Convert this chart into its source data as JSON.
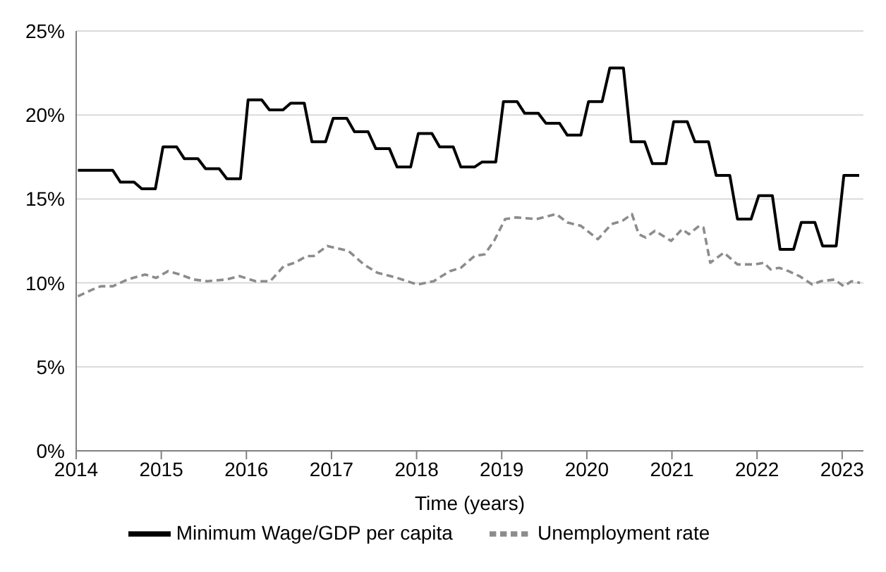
{
  "chart_data": {
    "type": "line",
    "xlabel": "Time (years)",
    "xlim": [
      2014,
      2023.25
    ],
    "xticks": [
      2014,
      2015,
      2016,
      2017,
      2018,
      2019,
      2020,
      2021,
      2022,
      2023
    ],
    "ylim": [
      0,
      25
    ],
    "yticks": [
      {
        "value": 0,
        "label": "0%"
      },
      {
        "value": 5,
        "label": "5%"
      },
      {
        "value": 10,
        "label": "10%"
      },
      {
        "value": 15,
        "label": "15%"
      },
      {
        "value": 20,
        "label": "20%"
      },
      {
        "value": 25,
        "label": "25%"
      }
    ],
    "grid": "y",
    "legend": "bottom",
    "marker": "none",
    "series": [
      {
        "name": "Unemployment rate",
        "color": "#8c8c8c",
        "line_style": "dashed",
        "x": [
          2014.02,
          2014.19,
          2014.29,
          2014.43,
          2014.6,
          2014.81,
          2014.94,
          2015.08,
          2015.22,
          2015.38,
          2015.54,
          2015.76,
          2015.92,
          2016.11,
          2016.28,
          2016.44,
          2016.57,
          2016.71,
          2016.79,
          2016.95,
          2017.2,
          2017.38,
          2017.54,
          2017.77,
          2018.01,
          2018.2,
          2018.39,
          2018.52,
          2018.68,
          2018.8,
          2018.91,
          2019.04,
          2019.17,
          2019.41,
          2019.64,
          2019.77,
          2019.93,
          2020.13,
          2020.29,
          2020.42,
          2020.53,
          2020.61,
          2020.69,
          2020.8,
          2020.99,
          2021.12,
          2021.2,
          2021.32,
          2021.37,
          2021.45,
          2021.61,
          2021.77,
          2021.97,
          2022.08,
          2022.16,
          2022.26,
          2022.37,
          2022.5,
          2022.65,
          2022.75,
          2022.91,
          2023.02,
          2023.11,
          2023.21
        ],
        "values": [
          9.2,
          9.6,
          9.8,
          9.8,
          10.2,
          10.5,
          10.3,
          10.7,
          10.5,
          10.2,
          10.1,
          10.2,
          10.4,
          10.1,
          10.1,
          11.0,
          11.2,
          11.6,
          11.6,
          12.2,
          11.9,
          11.1,
          10.6,
          10.3,
          9.9,
          10.1,
          10.7,
          10.9,
          11.6,
          11.7,
          12.5,
          13.8,
          13.9,
          13.8,
          14.1,
          13.6,
          13.4,
          12.6,
          13.5,
          13.7,
          14.1,
          12.9,
          12.7,
          13.1,
          12.5,
          13.2,
          12.9,
          13.4,
          13.3,
          11.2,
          11.8,
          11.1,
          11.1,
          11.2,
          10.8,
          10.9,
          10.7,
          10.4,
          9.9,
          10.1,
          10.2,
          9.8,
          10.1,
          10.0
        ]
      },
      {
        "name": "Minimum Wage/GDP per capita",
        "color": "#000000",
        "line_style": "solid",
        "x": [
          2014.02,
          2014.18,
          2014.27,
          2014.43,
          2014.52,
          2014.68,
          2014.77,
          2014.93,
          2015.02,
          2015.18,
          2015.27,
          2015.43,
          2015.52,
          2015.68,
          2015.77,
          2015.93,
          2016.02,
          2016.18,
          2016.27,
          2016.43,
          2016.52,
          2016.68,
          2016.77,
          2016.93,
          2017.02,
          2017.18,
          2017.27,
          2017.43,
          2017.52,
          2017.68,
          2017.77,
          2017.93,
          2018.02,
          2018.18,
          2018.27,
          2018.43,
          2018.52,
          2018.68,
          2018.77,
          2018.93,
          2019.02,
          2019.18,
          2019.27,
          2019.43,
          2019.52,
          2019.68,
          2019.77,
          2019.93,
          2020.02,
          2020.18,
          2020.27,
          2020.43,
          2020.52,
          2020.68,
          2020.77,
          2020.93,
          2021.02,
          2021.18,
          2021.27,
          2021.43,
          2021.52,
          2021.68,
          2021.77,
          2021.93,
          2022.02,
          2022.18,
          2022.27,
          2022.43,
          2022.52,
          2022.68,
          2022.77,
          2022.93,
          2023.02,
          2023.2
        ],
        "values": [
          16.7,
          16.7,
          16.7,
          16.7,
          16.0,
          16.0,
          15.6,
          15.6,
          18.1,
          18.1,
          17.4,
          17.4,
          16.8,
          16.8,
          16.2,
          16.2,
          20.9,
          20.9,
          20.3,
          20.3,
          20.7,
          20.7,
          18.4,
          18.4,
          19.8,
          19.8,
          19.0,
          19.0,
          18.0,
          18.0,
          16.9,
          16.9,
          18.9,
          18.9,
          18.1,
          18.1,
          16.9,
          16.9,
          17.2,
          17.2,
          20.8,
          20.8,
          20.1,
          20.1,
          19.5,
          19.5,
          18.8,
          18.8,
          20.8,
          20.8,
          22.8,
          22.8,
          18.4,
          18.4,
          17.1,
          17.1,
          19.6,
          19.6,
          18.4,
          18.4,
          16.4,
          16.4,
          13.8,
          13.8,
          15.2,
          15.2,
          12.0,
          12.0,
          13.6,
          13.6,
          12.2,
          12.2,
          16.4,
          16.4
        ]
      }
    ]
  }
}
